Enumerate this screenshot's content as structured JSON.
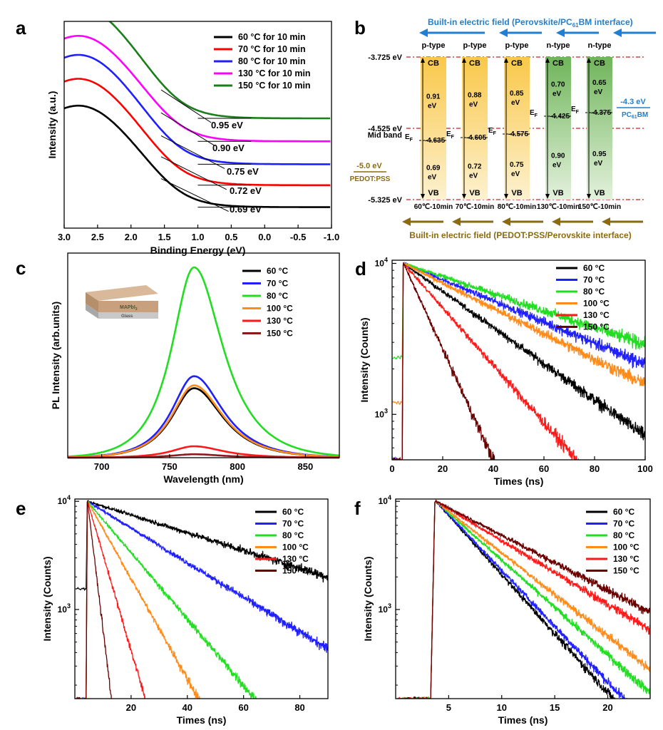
{
  "chart_data": [
    {
      "id": "a",
      "type": "line",
      "panel_label": "a",
      "xlabel": "Binding Energy (eV)",
      "ylabel": "Intensity (a.u.)",
      "xlim": [
        3.0,
        -1.0
      ],
      "ylim": [
        0,
        1
      ],
      "x_ticks": [
        "3.0",
        "2.5",
        "2.0",
        "1.5",
        "1.0",
        "0.5",
        "0.0",
        "-0.5",
        "-1.0"
      ],
      "x_tick_values": [
        3.0,
        2.5,
        2.0,
        1.5,
        1.0,
        0.5,
        0.0,
        -0.5,
        -1.0
      ],
      "series": [
        {
          "name": "60 °C for 10 min",
          "color": "#000000",
          "base": 0.105,
          "peak": 0.62,
          "onset": 0.69,
          "onset_label": "0.69 eV"
        },
        {
          "name": "70 °C for 10 min",
          "color": "#ff0000",
          "base": 0.215,
          "peak": 0.755,
          "onset": 0.72,
          "onset_label": "0.72 eV"
        },
        {
          "name": "80 °C for 10 min",
          "color": "#1f1fff",
          "base": 0.32,
          "peak": 0.875,
          "onset": 0.75,
          "onset_label": "0.75 eV"
        },
        {
          "name": "130 °C for 10 min",
          "color": "#ff00ff",
          "base": 0.435,
          "peak": 0.97,
          "onset": 0.9,
          "onset_label": "0.90 eV"
        },
        {
          "name": "150 °C for 10 min",
          "color": "#1a7f1a",
          "base": 0.55,
          "peak": 1.12,
          "onset": 0.95,
          "onset_label": "0.95 eV"
        }
      ]
    },
    {
      "id": "b",
      "type": "diagram",
      "panel_label": "b",
      "top_field": "Built-in electric field (Perovskite/PC",
      "top_field_sub": "61",
      "top_field_end": "BM interface)",
      "bottom_field": "Built-in electric field (PEDOT:PSS/Perovskite interface)",
      "levels": [
        {
          "label": "-3.725 eV",
          "value": -3.725
        },
        {
          "label": "-4.525 eV",
          "value": -4.525
        },
        {
          "label": "-5.325 eV",
          "value": -5.325
        }
      ],
      "mid_band": "Mid band",
      "pedot_value": "-5.0 eV",
      "pedot_name": "PEDOT:PSS",
      "pcbm_value": "-4.3 eV",
      "pcbm_name": "PC",
      "pcbm_sub": "61",
      "pcbm_end": "BM",
      "cb": "CB",
      "vb": "VB",
      "ef": "E",
      "ef_sub": "F",
      "columns": [
        {
          "type": "p-type",
          "ef": "-4.635",
          "up": "0.91",
          "down": "0.69",
          "unit": "eV",
          "temp": "60℃-10min",
          "kind": "p"
        },
        {
          "type": "p-type",
          "ef": "-4.605",
          "up": "0.88",
          "down": "0.72",
          "unit": "eV",
          "temp": "70℃-10min",
          "kind": "p"
        },
        {
          "type": "p-type",
          "ef": "-4.575",
          "up": "0.85",
          "down": "0.75",
          "unit": "eV",
          "temp": "80℃-10min",
          "kind": "p"
        },
        {
          "type": "n-type",
          "ef": "-4.425",
          "up": "0.70",
          "down": "0.90",
          "unit": "eV",
          "temp": "130℃-10min",
          "kind": "n"
        },
        {
          "type": "n-type",
          "ef": "-4.375",
          "up": "0.65",
          "down": "0.95",
          "unit": "eV",
          "temp": "150℃-10min",
          "kind": "n"
        }
      ]
    },
    {
      "id": "c",
      "type": "line",
      "panel_label": "c",
      "xlabel": "Wavelength (nm)",
      "ylabel": "PL Intensity (arb.units)",
      "xlim": [
        675,
        875
      ],
      "ylim": [
        0,
        1
      ],
      "x_ticks": [
        "700",
        "750",
        "800",
        "850"
      ],
      "x_tick_values": [
        700,
        750,
        800,
        850
      ],
      "inset_top": "MAPbI",
      "inset_top_sub": "3",
      "inset_bottom": "Glass",
      "series": [
        {
          "name": "60 °C",
          "color": "#000000",
          "amp": 0.365
        },
        {
          "name": "70 °C",
          "color": "#1f1fff",
          "amp": 0.428
        },
        {
          "name": "80 °C",
          "color": "#22dd22",
          "amp": 1.0
        },
        {
          "name": "100 °C",
          "color": "#ff8c1a",
          "amp": 0.38
        },
        {
          "name": "130 °C",
          "color": "#ff1a1a",
          "amp": 0.06
        },
        {
          "name": "150 °C",
          "color": "#8b1a1a",
          "amp": 0.018
        }
      ],
      "peak_nm": 768
    },
    {
      "id": "d",
      "type": "line",
      "panel_label": "d",
      "xlabel": "Times (ns)",
      "ylabel": "Intensity (Counts)",
      "xlim": [
        0,
        100
      ],
      "ylim_log": [
        500,
        10000
      ],
      "x_ticks": [
        "0",
        "20",
        "40",
        "60",
        "80",
        "100"
      ],
      "x_tick_values": [
        0,
        20,
        40,
        60,
        80,
        100
      ],
      "y_ticks": [
        "10^4",
        "10^3"
      ],
      "series": [
        {
          "name": "60 °C",
          "color": "#000000",
          "end_value": 720,
          "pre": 500
        },
        {
          "name": "70 °C",
          "color": "#1f1fff",
          "end_value": 2150,
          "pre": 500
        },
        {
          "name": "80 °C",
          "color": "#22dd22",
          "end_value": 2900,
          "pre": 2400
        },
        {
          "name": "100 °C",
          "color": "#ff8c1a",
          "end_value": 1580,
          "pre": 1200
        },
        {
          "name": "130 °C",
          "color": "#ff1a1a",
          "end_value": 500,
          "end_x": 73,
          "pre": 500
        },
        {
          "name": "150 °C",
          "color": "#6b0000",
          "end_value": 500,
          "end_x": 40,
          "pre": 500
        }
      ],
      "peak_x": 4.5
    },
    {
      "id": "e",
      "type": "line",
      "panel_label": "e",
      "xlabel": "Times (ns)",
      "ylabel": "Intensity (Counts)",
      "xlim": [
        0,
        90
      ],
      "ylim_log": [
        150,
        10000
      ],
      "x_ticks": [
        "20",
        "40",
        "60",
        "80"
      ],
      "x_tick_values": [
        20,
        40,
        60,
        80
      ],
      "y_ticks": [
        "10^4",
        "10^3"
      ],
      "series": [
        {
          "name": "60 °C",
          "color": "#000000",
          "end_value": 2000,
          "end_x": 90,
          "pre": 1550
        },
        {
          "name": "70 °C",
          "color": "#1f1fff",
          "end_value": 430,
          "end_x": 90,
          "pre": 150
        },
        {
          "name": "80 °C",
          "color": "#22dd22",
          "end_value": 150,
          "end_x": 64,
          "pre": 150
        },
        {
          "name": "100 °C",
          "color": "#ff8c1a",
          "end_value": 150,
          "end_x": 44,
          "pre": 150
        },
        {
          "name": "130 °C",
          "color": "#ff1a1a",
          "end_value": 150,
          "end_x": 25,
          "pre": 150
        },
        {
          "name": "150 °C",
          "color": "#6b0000",
          "end_value": 150,
          "end_x": 13,
          "pre": 150
        }
      ],
      "peak_x": 4.5
    },
    {
      "id": "f",
      "type": "line",
      "panel_label": "f",
      "xlabel": "Times (ns)",
      "ylabel": "Intensity (Counts)",
      "xlim": [
        0,
        24
      ],
      "ylim_log": [
        150,
        10000
      ],
      "x_ticks": [
        "5",
        "10",
        "15",
        "20"
      ],
      "x_tick_values": [
        5,
        10,
        15,
        20
      ],
      "y_ticks": [
        "10^4",
        "10^3"
      ],
      "series": [
        {
          "name": "60 °C",
          "color": "#000000",
          "end_value": 150,
          "end_x": 20.5,
          "pre": 150
        },
        {
          "name": "70 °C",
          "color": "#1f1fff",
          "end_value": 150,
          "end_x": 21.5,
          "pre": 150
        },
        {
          "name": "80 °C",
          "color": "#22dd22",
          "end_value": 170,
          "end_x": 24,
          "pre": 150
        },
        {
          "name": "100 °C",
          "color": "#ff8c1a",
          "end_value": 280,
          "end_x": 24,
          "pre": 150
        },
        {
          "name": "130 °C",
          "color": "#ff1a1a",
          "end_value": 650,
          "end_x": 24,
          "pre": 150
        },
        {
          "name": "150 °C",
          "color": "#6b0000",
          "end_value": 950,
          "end_x": 24,
          "pre": 150
        }
      ],
      "peak_x": 3.8
    }
  ]
}
